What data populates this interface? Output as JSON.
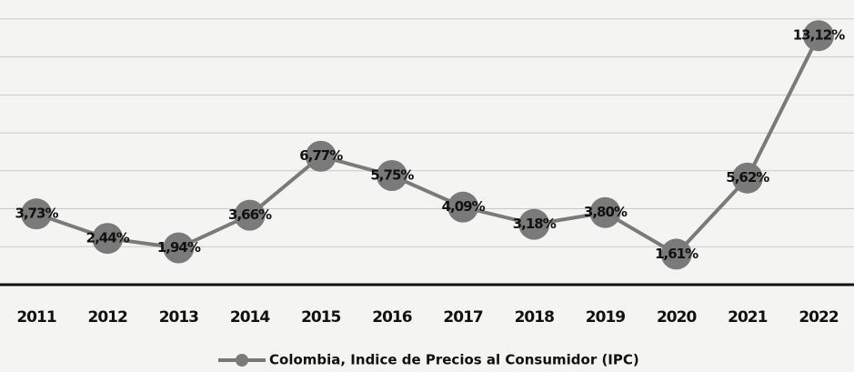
{
  "chart_data": {
    "type": "line",
    "categories": [
      "2011",
      "2012",
      "2013",
      "2014",
      "2015",
      "2016",
      "2017",
      "2018",
      "2019",
      "2020",
      "2021",
      "2022"
    ],
    "series": [
      {
        "name": "Colombia, Indice de Precios al Consumidor (IPC)",
        "color": "#7a7a7a",
        "values": [
          3.73,
          2.44,
          1.94,
          3.66,
          6.77,
          5.75,
          4.09,
          3.18,
          3.8,
          1.61,
          5.62,
          13.12
        ],
        "value_labels": [
          "3,73%",
          "2,44%",
          "1,94%",
          "3,66%",
          "6,77%",
          "5,75%",
          "4,09%",
          "3,18%",
          "3,80%",
          "1,61%",
          "5,62%",
          "13,12%"
        ]
      }
    ],
    "ylim": [
      0,
      15
    ],
    "yticks": [
      0,
      2,
      4,
      6,
      8,
      10,
      12,
      14
    ],
    "grid": true
  }
}
